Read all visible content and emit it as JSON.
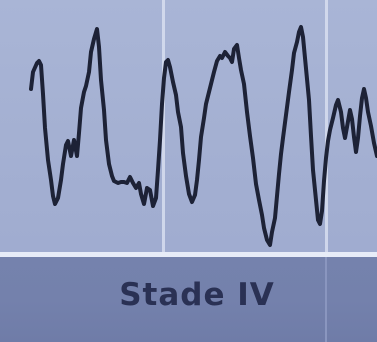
{
  "stage": {
    "label": "Stade IV"
  },
  "trace": {
    "color": "#1d2236",
    "background": "#a7b3d5"
  },
  "theme": {
    "stage_bar_color": "#7481ac",
    "stage_text_color": "#2a3154",
    "separator_color": "#e7ecf8"
  }
}
